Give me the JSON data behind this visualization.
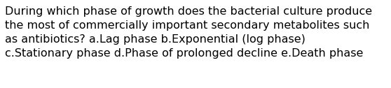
{
  "text": "During which phase of growth does the bacterial culture produce\nthe most of commercially important secondary metabolites such\nas antibiotics? a.Lag phase b.Exponential (log phase)\nc.Stationary phase d.Phase of prolonged decline e.Death phase",
  "background_color": "#ffffff",
  "text_color": "#000000",
  "font_size": 11.5,
  "fig_width": 5.58,
  "fig_height": 1.26,
  "dpi": 100
}
